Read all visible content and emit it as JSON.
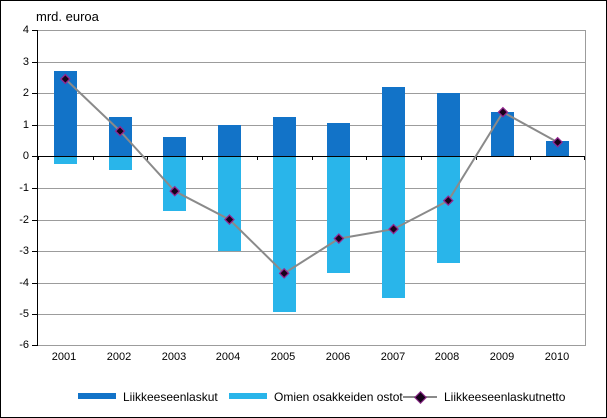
{
  "chart_data": {
    "type": "bar",
    "title": "mrd. euroa",
    "categories": [
      "2001",
      "2002",
      "2003",
      "2004",
      "2005",
      "2006",
      "2007",
      "2008",
      "2009",
      "2010"
    ],
    "series": [
      {
        "name": "Liikkeeseenlaskut",
        "type": "bar",
        "color": "#1273c8",
        "values": [
          2.7,
          1.25,
          0.6,
          1.0,
          1.25,
          1.05,
          2.2,
          2.0,
          1.4,
          0.5
        ]
      },
      {
        "name": "Omien osakkeiden ostot",
        "type": "bar",
        "color": "#29b5ea",
        "values": [
          -0.25,
          -0.45,
          -1.75,
          -3.0,
          -4.95,
          -3.7,
          -4.5,
          -3.4,
          0,
          0
        ]
      },
      {
        "name": "Liikkeeseenlaskutnetto",
        "type": "line",
        "color": "#8a8a8a",
        "marker_color": "#16021a",
        "marker_edge_color": "#93278f",
        "values": [
          2.45,
          0.8,
          -1.1,
          -2.0,
          -3.7,
          -2.6,
          -2.3,
          -1.4,
          1.4,
          0.45
        ]
      }
    ],
    "ylim": [
      -6,
      4
    ],
    "yticks": [
      "4",
      "3",
      "2",
      "1",
      "0",
      "-1",
      "-2",
      "-3",
      "-4",
      "-5",
      "-6"
    ],
    "xlabel": "",
    "ylabel": "",
    "grid": "horizontal",
    "gridline_color": "#9c9c9c",
    "zero_axis_color": "#000000",
    "legend_position": "bottom"
  }
}
